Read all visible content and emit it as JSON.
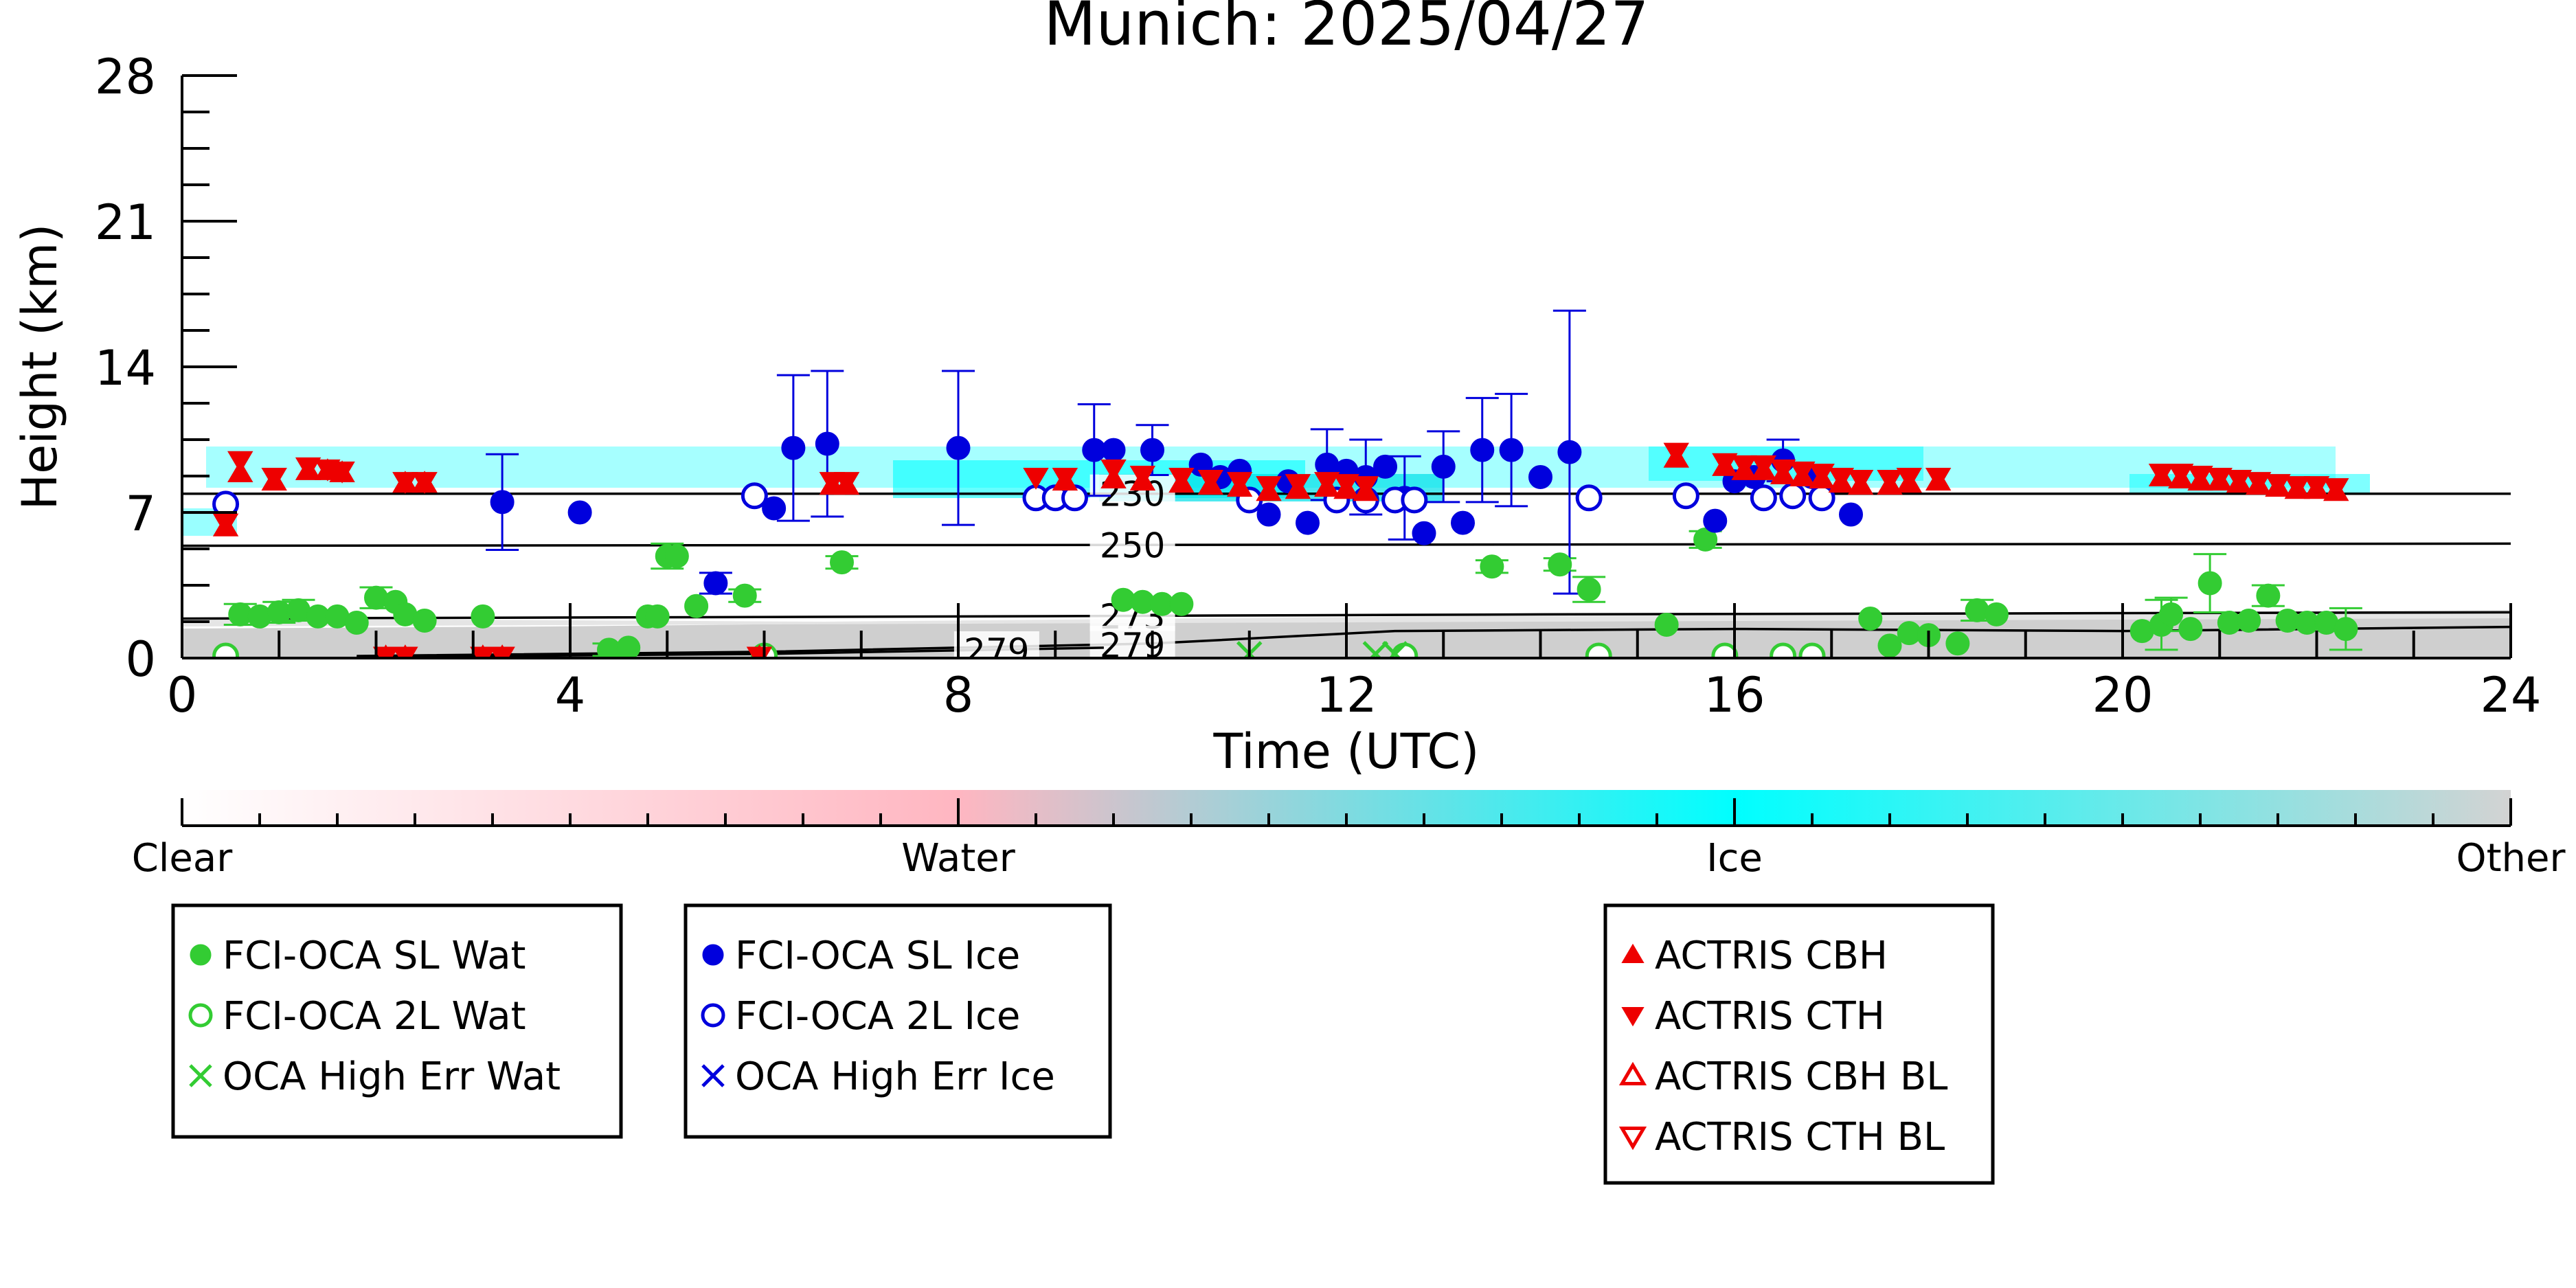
{
  "chart_data": {
    "type": "scatter",
    "title": "Munich: 2025/04/27",
    "xlabel": "Time (UTC)",
    "ylabel": "Height (km)",
    "xlim": [
      0,
      24
    ],
    "ylim": [
      0,
      28
    ],
    "xticks": [
      0,
      4,
      8,
      12,
      16,
      20,
      24
    ],
    "yticks": [
      0,
      7,
      14,
      21,
      28
    ],
    "temperature_contours": [
      {
        "label": "230",
        "points": [
          [
            0,
            7.9
          ],
          [
            24,
            7.9
          ]
        ],
        "label_x": 9.3
      },
      {
        "label": "250",
        "points": [
          [
            0,
            5.4
          ],
          [
            24,
            5.5
          ]
        ],
        "label_x": 9.3
      },
      {
        "label": "273",
        "points": [
          [
            0,
            1.9
          ],
          [
            8,
            2.0
          ],
          [
            14,
            2.1
          ],
          [
            24,
            2.2
          ]
        ],
        "label_x": 9.3
      },
      {
        "label": "279",
        "points": [
          [
            1.8,
            0.1
          ],
          [
            6,
            0.3
          ],
          [
            10,
            0.7
          ],
          [
            12.5,
            1.3
          ],
          [
            16,
            1.4
          ],
          [
            20,
            1.3
          ],
          [
            24,
            1.5
          ]
        ],
        "label_x": 9.3
      },
      {
        "label": "279",
        "points": [
          [
            1.8,
            0.05
          ],
          [
            6,
            0.2
          ],
          [
            9.5,
            0.5
          ]
        ],
        "label_x": 7.9
      }
    ],
    "colorbar": {
      "labels": [
        "Clear",
        "Water",
        "Ice",
        "Other"
      ],
      "stops": [
        {
          "pos": 0,
          "color": "#ffffff"
        },
        {
          "pos": 0.333,
          "color": "#ffb6c1"
        },
        {
          "pos": 0.667,
          "color": "#00ffff"
        },
        {
          "pos": 1,
          "color": "#d3d3d3"
        }
      ]
    },
    "series": [
      {
        "name": "FCI-OCA SL Wat",
        "marker": "filled-circle",
        "color": "#33cc33",
        "points": [
          [
            0.6,
            2.1
          ],
          [
            0.8,
            2.0
          ],
          [
            1.0,
            2.2
          ],
          [
            1.2,
            2.3
          ],
          [
            1.4,
            2.0
          ],
          [
            1.6,
            2.0
          ],
          [
            1.8,
            1.7
          ],
          [
            2.0,
            2.9
          ],
          [
            2.2,
            2.7
          ],
          [
            2.3,
            2.1
          ],
          [
            2.5,
            1.8
          ],
          [
            3.1,
            2.0
          ],
          [
            4.4,
            0.4
          ],
          [
            4.6,
            0.5
          ],
          [
            4.8,
            2.0
          ],
          [
            4.9,
            2.0
          ],
          [
            5.0,
            4.9
          ],
          [
            5.1,
            4.9
          ],
          [
            5.3,
            2.5
          ],
          [
            5.8,
            3.0
          ],
          [
            6.8,
            4.6
          ],
          [
            9.7,
            2.8
          ],
          [
            9.9,
            2.7
          ],
          [
            10.1,
            2.6
          ],
          [
            10.3,
            2.6
          ],
          [
            13.5,
            4.4
          ],
          [
            14.2,
            4.5
          ],
          [
            14.5,
            3.3
          ],
          [
            15.3,
            1.6
          ],
          [
            15.7,
            5.7
          ],
          [
            17.4,
            1.9
          ],
          [
            17.6,
            0.6
          ],
          [
            17.8,
            1.2
          ],
          [
            18.0,
            1.1
          ],
          [
            18.3,
            0.7
          ],
          [
            18.5,
            2.3
          ],
          [
            18.7,
            2.1
          ],
          [
            20.2,
            1.3
          ],
          [
            20.4,
            1.6
          ],
          [
            20.5,
            2.1
          ],
          [
            20.7,
            1.4
          ],
          [
            20.9,
            3.6
          ],
          [
            21.1,
            1.7
          ],
          [
            21.3,
            1.8
          ],
          [
            21.5,
            3.0
          ],
          [
            21.7,
            1.8
          ],
          [
            21.9,
            1.7
          ],
          [
            22.1,
            1.7
          ],
          [
            22.3,
            1.4
          ]
        ],
        "err": [
          [
            0.6,
            0.5
          ],
          [
            1.0,
            0.5
          ],
          [
            1.2,
            0.5
          ],
          [
            2.0,
            0.5
          ],
          [
            4.4,
            0.3
          ],
          [
            5.0,
            0.6
          ],
          [
            5.8,
            0.3
          ],
          [
            6.8,
            0.3
          ],
          [
            13.5,
            0.3
          ],
          [
            14.2,
            0.3
          ],
          [
            14.5,
            0.6
          ],
          [
            15.7,
            0.4
          ],
          [
            18.5,
            0.5
          ],
          [
            20.4,
            1.2
          ],
          [
            20.5,
            0.8
          ],
          [
            20.9,
            1.4
          ],
          [
            21.5,
            0.5
          ],
          [
            22.3,
            1.0
          ]
        ]
      },
      {
        "name": "FCI-OCA 2L Wat",
        "marker": "open-circle",
        "color": "#33cc33",
        "points": [
          [
            0.45,
            0.1
          ],
          [
            6.0,
            0.1
          ],
          [
            12.6,
            0.1
          ],
          [
            14.6,
            0.1
          ],
          [
            15.9,
            0.1
          ],
          [
            16.5,
            0.1
          ],
          [
            16.8,
            0.1
          ]
        ]
      },
      {
        "name": "OCA High Err Wat",
        "marker": "x",
        "color": "#33cc33",
        "points": [
          [
            11.0,
            0.2
          ],
          [
            12.3,
            0.2
          ],
          [
            12.5,
            0.2
          ]
        ]
      },
      {
        "name": "FCI-OCA SL Ice",
        "marker": "filled-circle",
        "color": "#0000dd",
        "points": [
          [
            3.3,
            7.5
          ],
          [
            4.1,
            7.0
          ],
          [
            5.5,
            3.6
          ],
          [
            6.1,
            7.2
          ],
          [
            6.3,
            10.1
          ],
          [
            6.65,
            10.3
          ],
          [
            8.0,
            10.1
          ],
          [
            9.4,
            10.0
          ],
          [
            9.6,
            10.0
          ],
          [
            10.0,
            10.0
          ],
          [
            10.5,
            9.3
          ],
          [
            10.7,
            8.7
          ],
          [
            10.9,
            9.0
          ],
          [
            11.2,
            6.9
          ],
          [
            11.4,
            8.5
          ],
          [
            11.6,
            6.5
          ],
          [
            11.8,
            9.3
          ],
          [
            12.0,
            9.0
          ],
          [
            12.2,
            8.7
          ],
          [
            12.4,
            9.2
          ],
          [
            12.6,
            7.7
          ],
          [
            12.8,
            6.0
          ],
          [
            13.0,
            9.2
          ],
          [
            13.2,
            6.5
          ],
          [
            13.4,
            10.0
          ],
          [
            13.7,
            10.0
          ],
          [
            14.0,
            8.7
          ],
          [
            14.3,
            9.9
          ],
          [
            15.8,
            6.6
          ],
          [
            16.0,
            8.5
          ],
          [
            16.2,
            8.7
          ],
          [
            16.5,
            9.5
          ],
          [
            16.8,
            8.7
          ],
          [
            17.2,
            6.9
          ]
        ],
        "err": [
          [
            3.3,
            2.3
          ],
          [
            5.5,
            0.5
          ],
          [
            6.3,
            3.5
          ],
          [
            6.65,
            3.5
          ],
          [
            8.0,
            3.7
          ],
          [
            9.4,
            2.2
          ],
          [
            10.0,
            1.2
          ],
          [
            11.8,
            1.7
          ],
          [
            12.2,
            1.8
          ],
          [
            12.6,
            2.0
          ],
          [
            13.0,
            1.7
          ],
          [
            13.4,
            2.5
          ],
          [
            13.7,
            2.7
          ],
          [
            14.3,
            6.8
          ],
          [
            16.5,
            1.0
          ]
        ]
      },
      {
        "name": "FCI-OCA 2L Ice",
        "marker": "open-circle",
        "color": "#0000dd",
        "points": [
          [
            0.45,
            7.4
          ],
          [
            5.9,
            7.8
          ],
          [
            8.8,
            7.7
          ],
          [
            9.0,
            7.7
          ],
          [
            9.2,
            7.7
          ],
          [
            11.0,
            7.6
          ],
          [
            11.9,
            7.6
          ],
          [
            12.2,
            7.6
          ],
          [
            12.5,
            7.6
          ],
          [
            12.7,
            7.6
          ],
          [
            14.5,
            7.7
          ],
          [
            15.5,
            7.8
          ],
          [
            16.3,
            7.7
          ],
          [
            16.6,
            7.8
          ],
          [
            16.9,
            7.7
          ]
        ]
      },
      {
        "name": "OCA High Err Ice",
        "marker": "x",
        "color": "#0000dd",
        "points": []
      },
      {
        "name": "ACTRIS CBH",
        "marker": "filled-triangle-up",
        "color": "#ee0000",
        "points": [
          [
            0.45,
            6.3
          ],
          [
            0.6,
            8.9
          ],
          [
            0.95,
            8.5
          ],
          [
            1.3,
            9.0
          ],
          [
            1.5,
            9.0
          ],
          [
            1.65,
            8.9
          ],
          [
            2.3,
            8.4
          ],
          [
            2.5,
            8.4
          ],
          [
            6.7,
            8.3
          ],
          [
            6.85,
            8.3
          ],
          [
            2.1,
            0.05
          ],
          [
            2.3,
            0.05
          ],
          [
            3.1,
            0.05
          ],
          [
            3.3,
            0.05
          ],
          [
            5.95,
            0.05
          ],
          [
            9.1,
            8.5
          ],
          [
            9.6,
            8.6
          ],
          [
            9.9,
            8.5
          ],
          [
            10.3,
            8.4
          ],
          [
            10.6,
            8.3
          ],
          [
            10.9,
            8.2
          ],
          [
            11.2,
            8.0
          ],
          [
            11.5,
            8.1
          ],
          [
            11.8,
            8.2
          ],
          [
            12.0,
            8.1
          ],
          [
            12.2,
            8.0
          ],
          [
            15.4,
            9.6
          ],
          [
            15.9,
            9.2
          ],
          [
            16.1,
            9.0
          ],
          [
            16.3,
            9.0
          ],
          [
            16.5,
            8.8
          ],
          [
            16.7,
            8.7
          ],
          [
            16.9,
            8.6
          ],
          [
            17.1,
            8.4
          ],
          [
            17.3,
            8.3
          ],
          [
            17.6,
            8.3
          ],
          [
            17.8,
            8.4
          ],
          [
            18.1,
            8.5
          ],
          [
            20.4,
            8.7
          ],
          [
            20.6,
            8.6
          ],
          [
            20.8,
            8.5
          ],
          [
            21.0,
            8.5
          ],
          [
            21.2,
            8.4
          ],
          [
            21.4,
            8.3
          ],
          [
            21.6,
            8.2
          ],
          [
            21.8,
            8.1
          ],
          [
            22.0,
            8.1
          ],
          [
            22.2,
            8.0
          ]
        ]
      },
      {
        "name": "ACTRIS CTH",
        "marker": "filled-triangle-down",
        "color": "#ee0000",
        "points": [
          [
            0.45,
            6.5
          ],
          [
            0.6,
            9.5
          ],
          [
            0.95,
            8.7
          ],
          [
            1.3,
            9.2
          ],
          [
            1.5,
            9.1
          ],
          [
            1.65,
            9.0
          ],
          [
            2.3,
            8.5
          ],
          [
            2.5,
            8.5
          ],
          [
            6.7,
            8.5
          ],
          [
            6.85,
            8.5
          ],
          [
            2.1,
            0.1
          ],
          [
            2.3,
            0.1
          ],
          [
            3.1,
            0.1
          ],
          [
            3.3,
            0.1
          ],
          [
            5.95,
            0.1
          ],
          [
            8.8,
            8.7
          ],
          [
            9.1,
            8.7
          ],
          [
            9.6,
            9.1
          ],
          [
            9.9,
            8.8
          ],
          [
            10.3,
            8.7
          ],
          [
            10.6,
            8.6
          ],
          [
            10.9,
            8.5
          ],
          [
            11.2,
            8.3
          ],
          [
            11.5,
            8.4
          ],
          [
            11.8,
            8.5
          ],
          [
            12.0,
            8.4
          ],
          [
            12.2,
            8.3
          ],
          [
            15.4,
            9.9
          ],
          [
            15.9,
            9.4
          ],
          [
            16.1,
            9.3
          ],
          [
            16.3,
            9.3
          ],
          [
            16.5,
            9.1
          ],
          [
            16.7,
            9.0
          ],
          [
            16.9,
            8.9
          ],
          [
            17.1,
            8.7
          ],
          [
            17.3,
            8.6
          ],
          [
            17.6,
            8.6
          ],
          [
            17.8,
            8.7
          ],
          [
            18.1,
            8.7
          ],
          [
            20.4,
            8.9
          ],
          [
            20.6,
            8.9
          ],
          [
            20.8,
            8.8
          ],
          [
            21.0,
            8.7
          ],
          [
            21.2,
            8.6
          ],
          [
            21.4,
            8.5
          ],
          [
            21.6,
            8.4
          ],
          [
            21.8,
            8.3
          ],
          [
            22.0,
            8.3
          ],
          [
            22.2,
            8.2
          ]
        ]
      },
      {
        "name": "ACTRIS CBH BL",
        "marker": "open-triangle-up",
        "color": "#ee0000",
        "points": []
      },
      {
        "name": "ACTRIS CTH BL",
        "marker": "open-triangle-down",
        "color": "#ee0000",
        "points": []
      }
    ],
    "legends": [
      {
        "entries": [
          "FCI-OCA SL Wat",
          "FCI-OCA 2L Wat",
          "OCA High Err Wat"
        ]
      },
      {
        "entries": [
          "FCI-OCA SL Ice",
          "FCI-OCA 2L Ice",
          "OCA High Err Ice"
        ]
      },
      {
        "entries": [
          "ACTRIS CBH",
          "ACTRIS CTH",
          "ACTRIS CBH BL",
          "ACTRIS CTH BL"
        ]
      }
    ]
  }
}
